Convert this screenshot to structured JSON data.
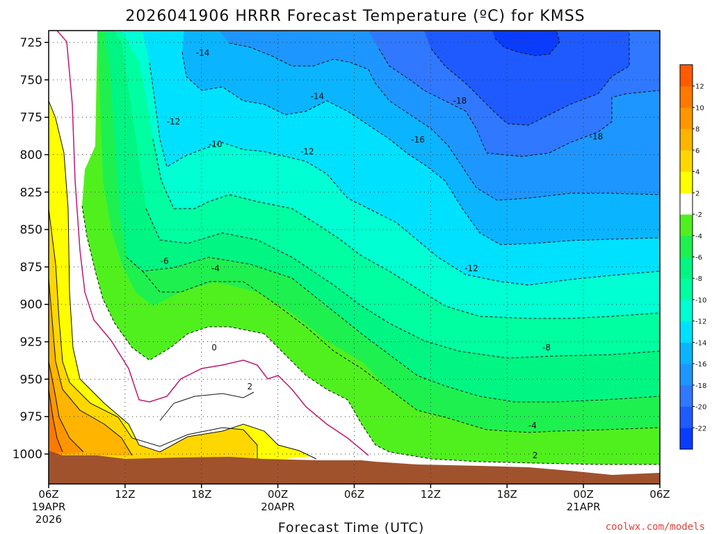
{
  "chart_data": {
    "type": "heatmap",
    "title": "2026041906 HRRR Forecast Temperature (ºC) for KMSS",
    "xlabel": "Forecast Time (UTC)",
    "ylabel": "",
    "y_ticks": [
      725,
      750,
      775,
      800,
      825,
      850,
      875,
      900,
      925,
      950,
      975,
      1000
    ],
    "x_ticks": [
      {
        "hour": 0,
        "label": "06Z",
        "sub1": "19APR",
        "sub2": "2026"
      },
      {
        "hour": 6,
        "label": "12Z",
        "sub1": "",
        "sub2": ""
      },
      {
        "hour": 12,
        "label": "18Z",
        "sub1": "",
        "sub2": ""
      },
      {
        "hour": 18,
        "label": "00Z",
        "sub1": "20APR",
        "sub2": ""
      },
      {
        "hour": 24,
        "label": "06Z",
        "sub1": "",
        "sub2": ""
      },
      {
        "hour": 30,
        "label": "12Z",
        "sub1": "",
        "sub2": ""
      },
      {
        "hour": 36,
        "label": "18Z",
        "sub1": "",
        "sub2": ""
      },
      {
        "hour": 42,
        "label": "00Z",
        "sub1": "21APR",
        "sub2": ""
      },
      {
        "hour": 48,
        "label": "06Z",
        "sub1": "",
        "sub2": ""
      }
    ],
    "colorbar": {
      "levels": [
        -24,
        -22,
        -20,
        -18,
        -16,
        -14,
        -12,
        -10,
        -8,
        -6,
        -4,
        -2,
        2,
        4,
        6,
        8,
        10,
        12,
        14
      ],
      "tick_labels": [
        "-22",
        "-20",
        "-18",
        "-16",
        "-14",
        "-12",
        "-10",
        "-8",
        "-6",
        "-4",
        "-2",
        "2",
        "4",
        "6",
        "8",
        "10",
        "12"
      ],
      "tick_values": [
        -22,
        -20,
        -18,
        -16,
        -14,
        -12,
        -10,
        -8,
        -6,
        -4,
        -2,
        2,
        4,
        6,
        8,
        10,
        12
      ],
      "colors": [
        "#0a3cff",
        "#1e5aff",
        "#2f78ff",
        "#1e96ff",
        "#0ab4ff",
        "#00e1ff",
        "#00ffd2",
        "#00ffa0",
        "#00f582",
        "#1ef050",
        "#50f01e",
        "#ffffff",
        "#ffff00",
        "#ffd700",
        "#ffb400",
        "#ff9600",
        "#ff7800",
        "#ff5a00"
      ]
    },
    "contour_labels": [
      {
        "text": "-14",
        "hour": 12.1,
        "p": 732
      },
      {
        "text": "-14",
        "hour": 21.1,
        "p": 761
      },
      {
        "text": "-18",
        "hour": 32.3,
        "p": 764
      },
      {
        "text": "-12",
        "hour": 9.8,
        "p": 778
      },
      {
        "text": "-16",
        "hour": 29.0,
        "p": 790
      },
      {
        "text": "-10",
        "hour": 13.1,
        "p": 793
      },
      {
        "text": "-12",
        "hour": 20.3,
        "p": 798
      },
      {
        "text": "-18",
        "hour": 43.0,
        "p": 788
      },
      {
        "text": "-6",
        "hour": 9.1,
        "p": 871
      },
      {
        "text": "-4",
        "hour": 13.1,
        "p": 876
      },
      {
        "text": "-12",
        "hour": 33.2,
        "p": 876
      },
      {
        "text": "0",
        "hour": 13.0,
        "p": 929
      },
      {
        "text": "-8",
        "hour": 39.1,
        "p": 929
      },
      {
        "text": "2",
        "hour": 15.8,
        "p": 955
      },
      {
        "text": "-4",
        "hour": 38.0,
        "p": 981
      },
      {
        "text": "2",
        "hour": 38.2,
        "p": 1001
      }
    ],
    "grid": true,
    "legend": "right"
  },
  "credit": "coolwx.com/models"
}
